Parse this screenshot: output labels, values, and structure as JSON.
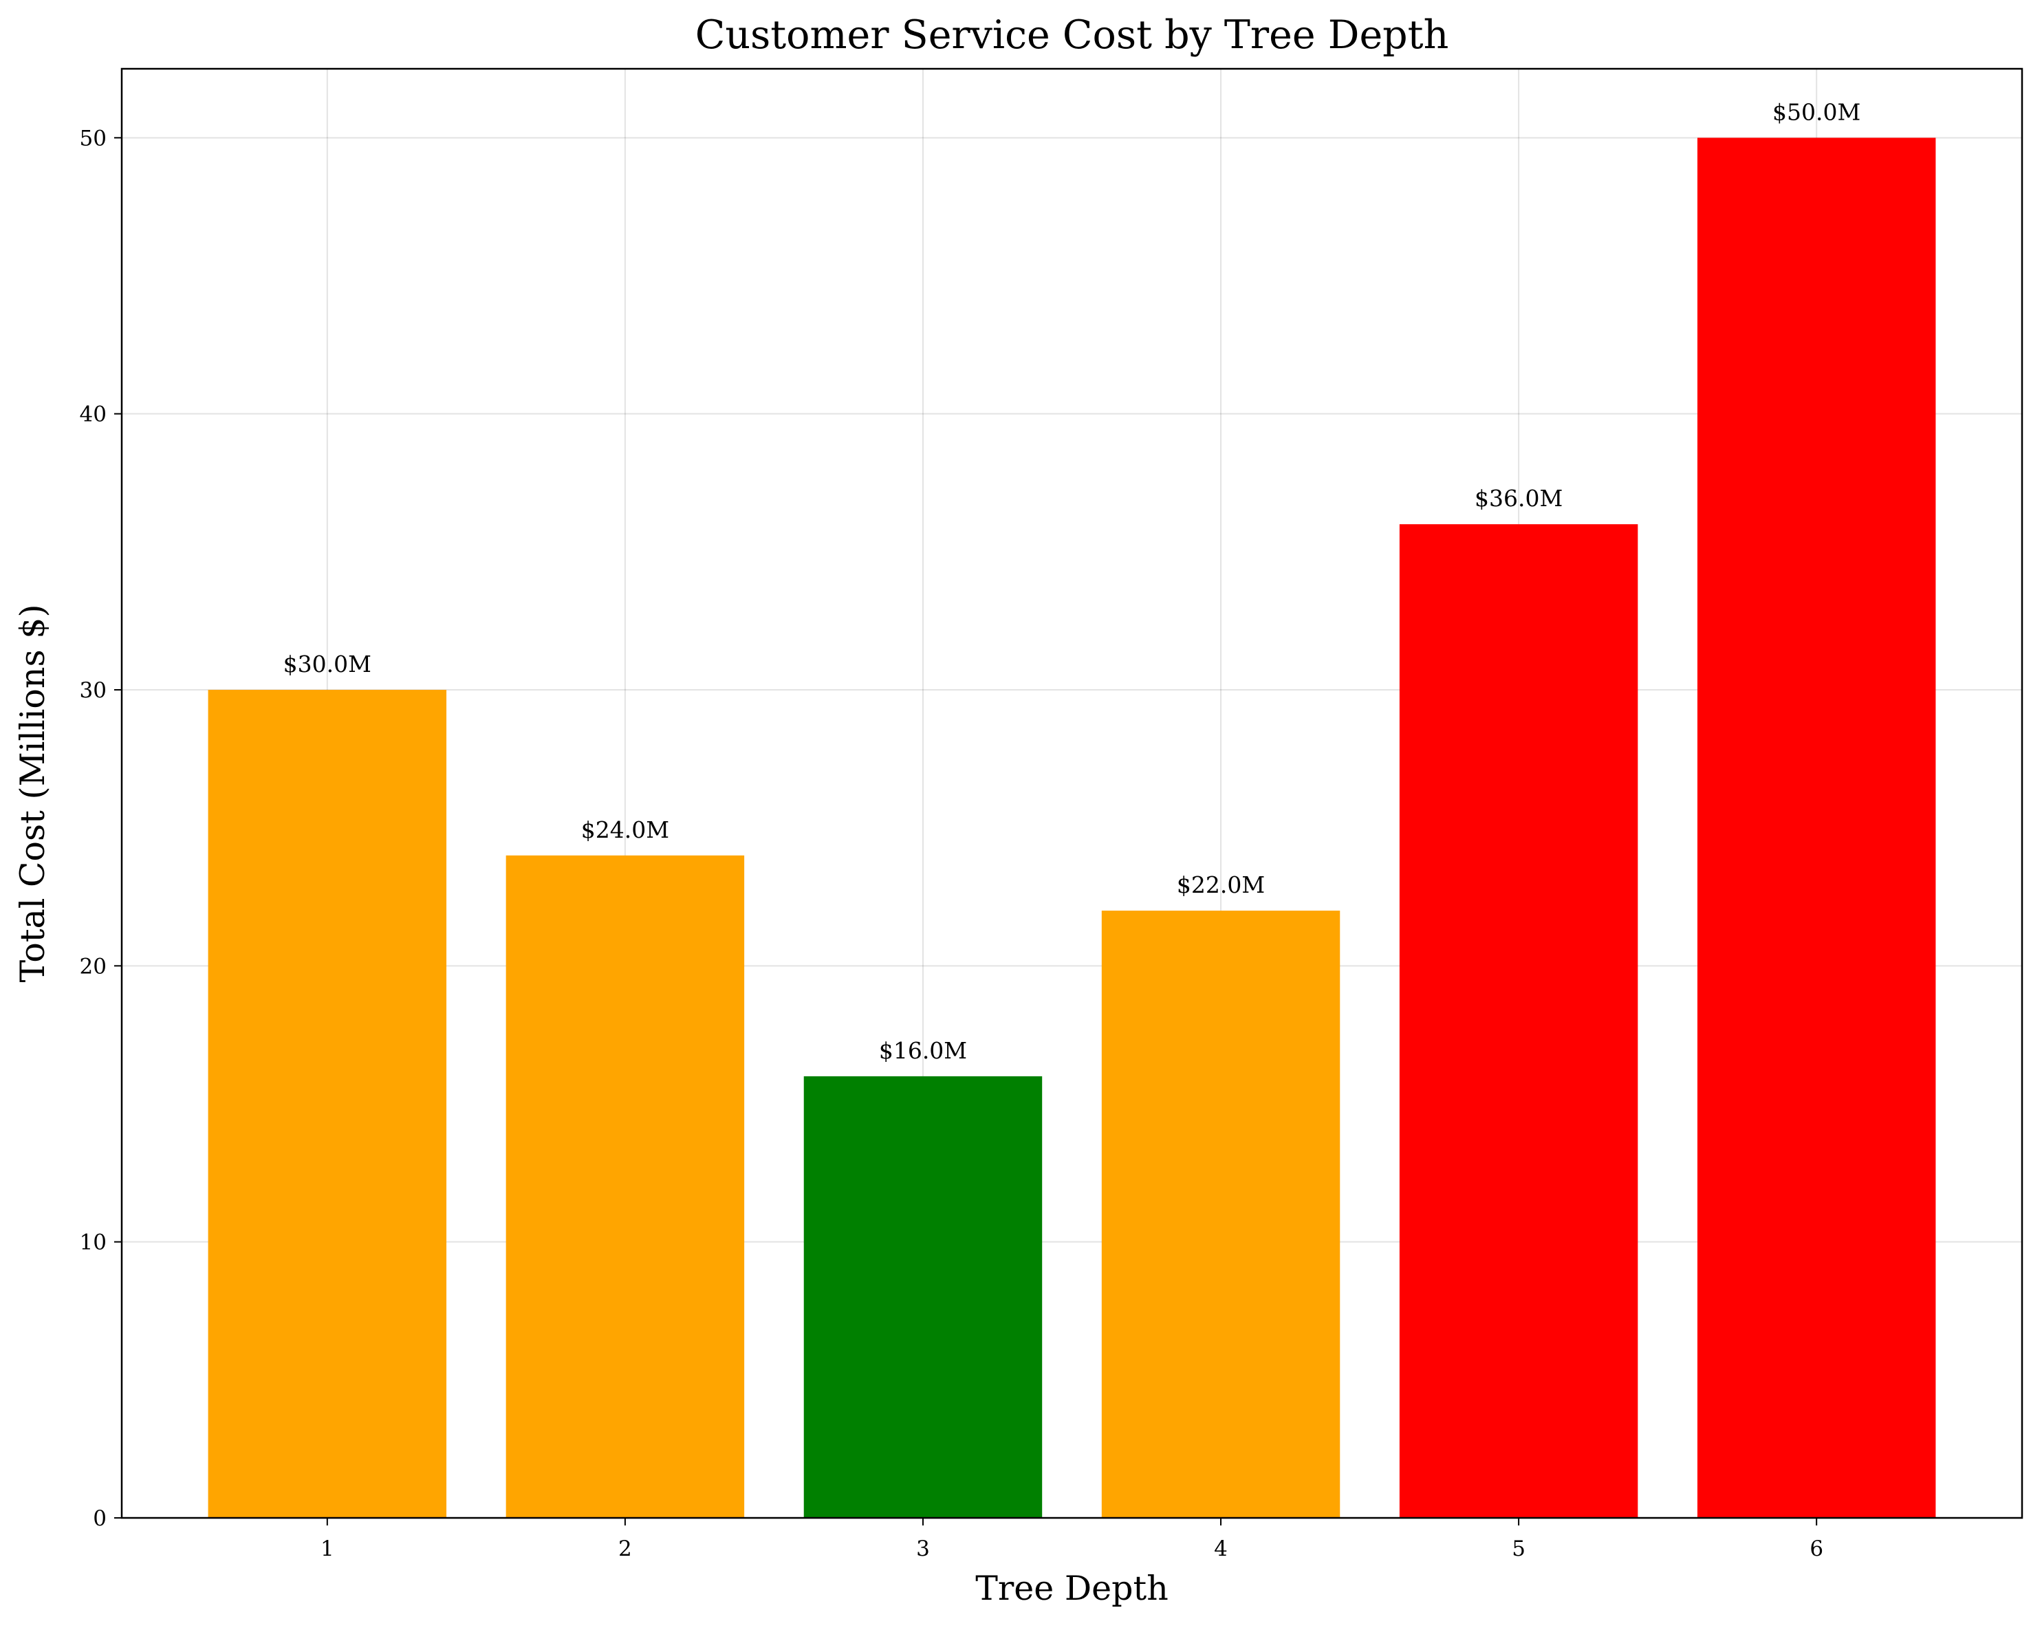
{
  "chart_data": {
    "type": "bar",
    "title": "Customer Service Cost by Tree Depth",
    "xlabel": "Tree Depth",
    "ylabel": "Total Cost (Millions $)",
    "categories": [
      "1",
      "2",
      "3",
      "4",
      "5",
      "6"
    ],
    "values": [
      30.0,
      24.0,
      16.0,
      22.0,
      36.0,
      50.0
    ],
    "data_labels": [
      "$30.0M",
      "$24.0M",
      "$16.0M",
      "$22.0M",
      "$36.0M",
      "$50.0M"
    ],
    "bar_colors": [
      "#FFA500",
      "#FFA500",
      "#008000",
      "#FFA500",
      "#FF0000",
      "#FF0000"
    ],
    "yticks": [
      0,
      10,
      20,
      30,
      40,
      50
    ],
    "ylim": [
      0,
      52.5
    ],
    "xlim": [
      0.31,
      6.69
    ],
    "grid": true,
    "legend": "none"
  }
}
